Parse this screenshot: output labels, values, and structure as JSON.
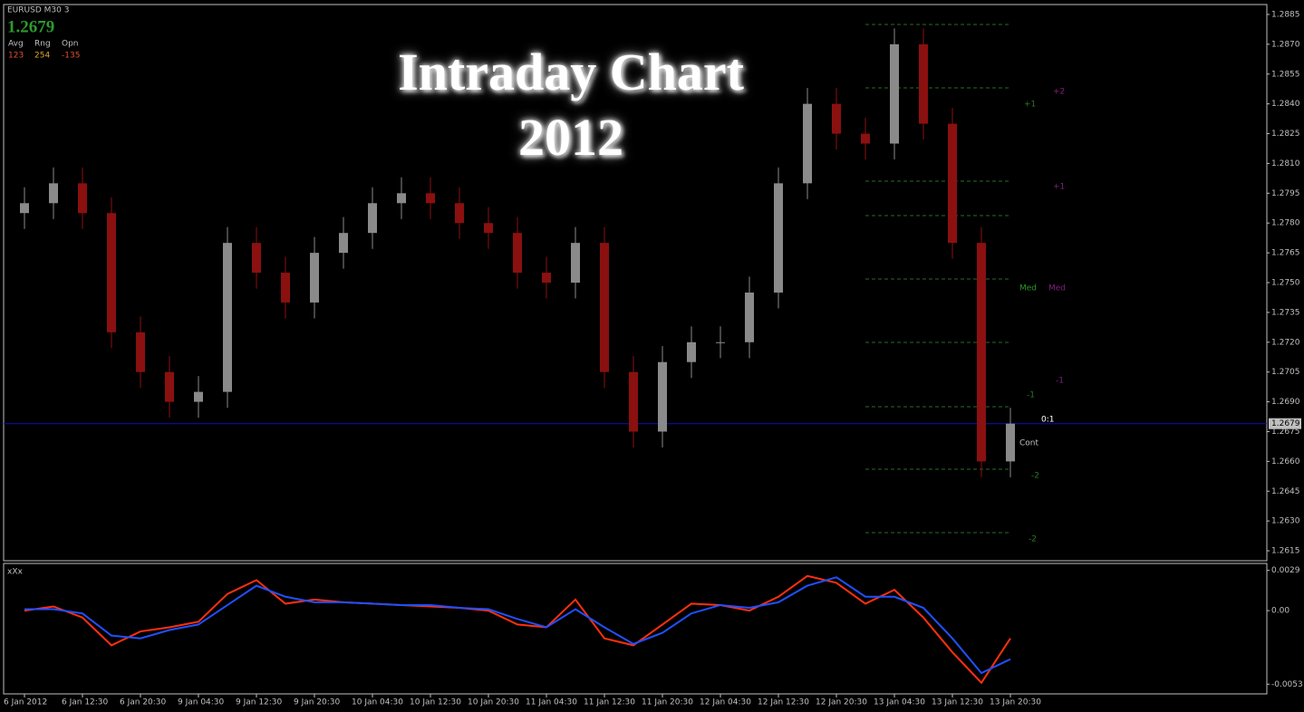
{
  "chart_data": [
    {
      "type": "candlestick",
      "title": "Intraday Chart",
      "subtitle": "2012",
      "symbol": "EURUSD M30 3",
      "last_price": 1.2679,
      "stats": {
        "labels": [
          "Avg",
          "Rng",
          "Opn"
        ],
        "values": [
          123,
          254,
          -135
        ]
      },
      "annotations": [
        "+2",
        "+1",
        "+1",
        "Med",
        "Med",
        "-1",
        "-1",
        "0:1",
        "Cont",
        "-2",
        "-2"
      ],
      "categories": [
        "6 Jan 2012",
        null,
        "6 Jan 12:30",
        null,
        "6 Jan 20:30",
        null,
        "9 Jan 04:30",
        null,
        "9 Jan 12:30",
        null,
        "9 Jan 20:30",
        null,
        "10 Jan 04:30",
        null,
        "10 Jan 12:30",
        null,
        "10 Jan 20:30",
        null,
        "11 Jan 04:30",
        null,
        "11 Jan 12:30",
        null,
        "11 Jan 20:30",
        null,
        "12 Jan 04:30",
        null,
        "12 Jan 12:30",
        null,
        "12 Jan 20:30",
        null,
        "13 Jan 04:30",
        null,
        "13 Jan 12:30",
        null,
        "13 Jan 20:30"
      ],
      "open": [
        1.2785,
        1.279,
        1.28,
        1.2785,
        1.2725,
        1.2705,
        1.269,
        1.2695,
        1.277,
        1.2755,
        1.274,
        1.2765,
        1.2775,
        1.279,
        1.2795,
        1.279,
        1.278,
        1.2775,
        1.2755,
        1.275,
        1.277,
        1.2705,
        1.2675,
        1.271,
        1.272,
        1.272,
        1.2745,
        1.28,
        1.284,
        1.2825,
        1.282,
        1.287,
        1.283,
        1.277,
        1.266
      ],
      "high": [
        1.2798,
        1.2808,
        1.2808,
        1.2793,
        1.2733,
        1.2713,
        1.2703,
        1.2778,
        1.2778,
        1.2763,
        1.2773,
        1.2783,
        1.2798,
        1.2803,
        1.2803,
        1.2798,
        1.2788,
        1.2783,
        1.2763,
        1.2778,
        1.2778,
        1.2713,
        1.2718,
        1.2728,
        1.2728,
        1.2753,
        1.2808,
        1.2848,
        1.2848,
        1.2833,
        1.2878,
        1.2878,
        1.2838,
        1.2778,
        1.2687
      ],
      "low": [
        1.2777,
        1.2782,
        1.2777,
        1.2717,
        1.2697,
        1.2682,
        1.2682,
        1.2687,
        1.2747,
        1.2732,
        1.2732,
        1.2757,
        1.2767,
        1.2782,
        1.2782,
        1.2772,
        1.2767,
        1.2747,
        1.2742,
        1.2742,
        1.2697,
        1.2667,
        1.2667,
        1.2702,
        1.2712,
        1.2712,
        1.2737,
        1.2792,
        1.2817,
        1.2812,
        1.2812,
        1.2822,
        1.2762,
        1.2652,
        1.2652
      ],
      "close": [
        1.279,
        1.28,
        1.2785,
        1.2725,
        1.2705,
        1.269,
        1.2695,
        1.277,
        1.2755,
        1.274,
        1.2765,
        1.2775,
        1.279,
        1.2795,
        1.279,
        1.278,
        1.2775,
        1.2755,
        1.275,
        1.277,
        1.2705,
        1.2675,
        1.271,
        1.272,
        1.272,
        1.2745,
        1.28,
        1.284,
        1.2825,
        1.282,
        1.287,
        1.283,
        1.277,
        1.266,
        1.2679
      ],
      "up_color": "#8a8a8a",
      "down_color": "#8b1010",
      "price_line_color": "#1010c0",
      "ylim": [
        1.261,
        1.289
      ],
      "yticks": [
        1.2885,
        {
          "value": 1.287,
          "label": "1.2870"
        },
        1.2855,
        {
          "value": 1.284,
          "label": "1.2840"
        },
        1.2825,
        {
          "value": 1.281,
          "label": "1.2810"
        },
        1.2795,
        {
          "value": 1.278,
          "label": "1.2780"
        },
        1.2765,
        {
          "value": 1.275,
          "label": "1.2750"
        },
        1.2735,
        {
          "value": 1.272,
          "label": "1.2720"
        },
        1.2705,
        {
          "value": 1.269,
          "label": "1.2690"
        },
        1.2675,
        {
          "value": 1.266,
          "label": "1.2660"
        },
        1.2645,
        {
          "value": 1.263,
          "label": "1.2630"
        },
        1.2615
      ]
    },
    {
      "type": "line",
      "title": "xXx",
      "series": [
        {
          "name": null,
          "color": "#ff3010",
          "values": [
            0.0,
            0.0003,
            -0.0005,
            -0.0025,
            -0.0015,
            -0.0012,
            -0.0008,
            0.0012,
            0.0022,
            0.0005,
            0.0008,
            0.0006,
            0.0005,
            0.0004,
            0.0003,
            0.0002,
            0.0,
            -0.001,
            -0.0012,
            0.0008,
            -0.002,
            -0.0025,
            -0.001,
            0.0005,
            0.0004,
            0.0,
            0.001,
            0.0025,
            0.002,
            0.0005,
            0.0015,
            -0.0005,
            -0.003,
            -0.0052,
            -0.002
          ]
        },
        {
          "name": null,
          "color": "#2050ff",
          "values": [
            0.0001,
            0.0001,
            -0.0002,
            -0.0018,
            -0.002,
            -0.0014,
            -0.001,
            0.0004,
            0.0018,
            0.001,
            0.0006,
            0.0006,
            0.0005,
            0.0004,
            0.0004,
            0.0002,
            0.0001,
            -0.0006,
            -0.0012,
            0.0001,
            -0.0012,
            -0.0024,
            -0.0016,
            -0.0002,
            0.0004,
            0.0002,
            0.0006,
            0.0018,
            0.0024,
            0.001,
            0.001,
            0.0002,
            -0.002,
            -0.0045,
            -0.0035
          ]
        }
      ],
      "ylim": [
        -0.006,
        0.0034
      ],
      "yticks": [
        0.0029,
        {
          "value": 0,
          "label": "0.00"
        },
        -0.0053
      ]
    }
  ]
}
